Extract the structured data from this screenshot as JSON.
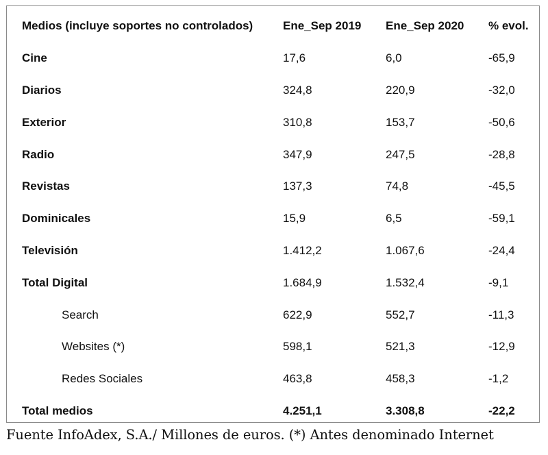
{
  "table": {
    "headers": {
      "medio": "Medios (incluye soportes no controlados)",
      "y2019": "Ene_Sep 2019",
      "y2020": "Ene_Sep 2020",
      "evol": "% evol."
    },
    "rows": [
      {
        "medio": "Cine",
        "y2019": "17,6",
        "y2020": "6,0",
        "evol": "-65,9"
      },
      {
        "medio": "Diarios",
        "y2019": "324,8",
        "y2020": "220,9",
        "evol": "-32,0"
      },
      {
        "medio": "Exterior",
        "y2019": "310,8",
        "y2020": "153,7",
        "evol": "-50,6"
      },
      {
        "medio": "Radio",
        "y2019": "347,9",
        "y2020": "247,5",
        "evol": "-28,8"
      },
      {
        "medio": "Revistas",
        "y2019": "137,3",
        "y2020": "74,8",
        "evol": "-45,5"
      },
      {
        "medio": "Dominicales",
        "y2019": "15,9",
        "y2020": "6,5",
        "evol": "-59,1"
      },
      {
        "medio": "Televisión",
        "y2019": "1.412,2",
        "y2020": "1.067,6",
        "evol": "-24,4"
      },
      {
        "medio": "Total Digital",
        "y2019": "1.684,9",
        "y2020": "1.532,4",
        "evol": "-9,1"
      },
      {
        "medio": "Search",
        "y2019": "622,9",
        "y2020": "552,7",
        "evol": "-11,3"
      },
      {
        "medio": "Websites (*)",
        "y2019": "598,1",
        "y2020": "521,3",
        "evol": "-12,9"
      },
      {
        "medio": "Redes Sociales",
        "y2019": "463,8",
        "y2020": "458,3",
        "evol": "-1,2"
      },
      {
        "medio": "Total medios",
        "y2019": "4.251,1",
        "y2020": "3.308,8",
        "evol": "-22,2"
      }
    ]
  },
  "source_note": "Fuente InfoAdex, S.A./ Millones de euros. (*) Antes denominado Internet"
}
